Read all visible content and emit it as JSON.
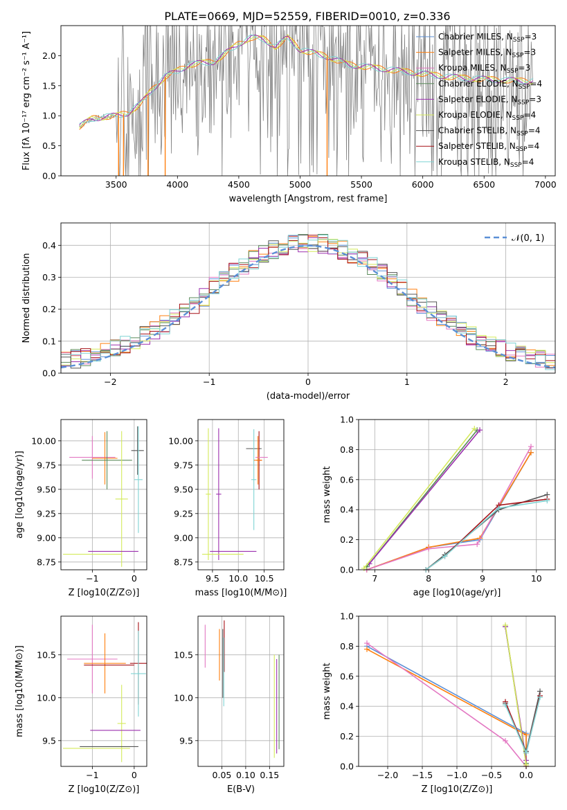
{
  "figure": {
    "title": "PLATE=0669, MJD=52559, FIBERID=0010, z=0.336",
    "series_colors": [
      "#5b8fd6",
      "#ff7f0e",
      "#e377c2",
      "#5a8a5a",
      "#9b2fae",
      "#d4ea5a",
      "#555555",
      "#a50f15",
      "#7fd3d3"
    ]
  },
  "chart_data": [
    {
      "id": "spectrum",
      "type": "line",
      "title": "PLATE=0669, MJD=52559, FIBERID=0010, z=0.336",
      "xlabel": "wavelength [Angstrom, rest frame]",
      "ylabel": "Flux [fλ 10⁻¹⁷ erg cm⁻² s⁻¹ A⁻¹]",
      "xlim": [
        3050,
        7080
      ],
      "ylim": [
        0,
        2.5
      ],
      "xticks": [
        3500,
        4000,
        4500,
        5000,
        5500,
        6000,
        6500,
        7000
      ],
      "yticks": [
        0.0,
        0.5,
        1.0,
        1.5,
        2.0
      ],
      "legend_position": "top-right",
      "legend": [
        "Chabrier MILES, N_SSP=3",
        "Salpeter MILES, N_SSP=3",
        "Kroupa MILES, N_SSP=3",
        "Chabrier ELODIE, N_SSP=4",
        "Salpeter ELODIE, N_SSP=3",
        "Kroupa ELODIE, N_SSP=4",
        "Chabrier STELIB, N_SSP=4",
        "Salpeter STELIB, N_SSP=4",
        "Kroupa STELIB, N_SSP=4"
      ],
      "continuum": {
        "x": [
          3200,
          3300,
          3400,
          3500,
          3600,
          3700,
          3800,
          3900,
          4000,
          4100,
          4200,
          4300,
          4400,
          4500,
          4600,
          4700,
          4800,
          4900,
          5000,
          5200,
          5400,
          5600,
          5800,
          6000,
          6200,
          6400,
          6600,
          6800,
          6900
        ],
        "y": [
          0.82,
          0.95,
          0.98,
          1.0,
          1.05,
          1.2,
          1.45,
          1.65,
          1.75,
          1.85,
          1.88,
          1.9,
          2.05,
          2.2,
          2.3,
          2.28,
          2.15,
          2.3,
          2.1,
          2.0,
          1.85,
          1.8,
          1.75,
          1.7,
          1.65,
          1.62,
          1.6,
          1.58,
          1.58
        ]
      }
    },
    {
      "id": "residuals",
      "type": "histogram",
      "xlabel": "(data-model)/error",
      "ylabel": "Normed distribution",
      "xlim": [
        -2.5,
        2.5
      ],
      "ylim": [
        0,
        0.47
      ],
      "xticks": [
        -2,
        -1,
        0,
        1,
        2
      ],
      "yticks": [
        0.0,
        0.1,
        0.2,
        0.3,
        0.4
      ],
      "legend": [
        "𝒩(0, 1)"
      ],
      "legend_position": "top-right",
      "bin_width": 0.1,
      "reference_curve": "normal(0,1)"
    },
    {
      "id": "age-vs-Z",
      "type": "errorbar",
      "xlabel": "Z [log10(Z/Z⊙)]",
      "ylabel": "age  [log10(age/yr)]",
      "xlim": [
        -1.75,
        0.3
      ],
      "ylim": [
        8.67,
        10.22
      ],
      "xticks": [
        -1,
        0
      ],
      "yticks": [
        8.75,
        9.0,
        9.25,
        9.5,
        9.75,
        10.0
      ],
      "points": [
        {
          "series": 6,
          "x": 0.08,
          "y": 9.9,
          "xerr": 0.15,
          "yerr": 0.25
        },
        {
          "series": 8,
          "x": 0.1,
          "y": 9.6,
          "xerr": 0.1,
          "yerr": 0.55
        },
        {
          "series": 2,
          "x": -1.0,
          "y": 9.83,
          "xerr": 0.55,
          "yerr": 0.22
        },
        {
          "series": 1,
          "x": -0.7,
          "y": 9.82,
          "xerr": 0.3,
          "yerr": 0.27
        },
        {
          "series": 3,
          "x": -0.65,
          "y": 9.8,
          "xerr": 0.6,
          "yerr": 0.3
        },
        {
          "series": 5,
          "x": -0.3,
          "y": 9.4,
          "xerr": 0.15,
          "yerr": 0.7
        },
        {
          "series": 4,
          "x": -0.5,
          "y": 8.86,
          "xerr": 0.6,
          "yerr": 0.0
        },
        {
          "series": 5,
          "x": -1.0,
          "y": 8.83,
          "xerr": 0.7,
          "yerr": 0.0
        }
      ]
    },
    {
      "id": "age-vs-mass",
      "type": "errorbar",
      "xlabel": "mass [log10(M/M⊙)]",
      "ylabel": "",
      "xlim": [
        9.22,
        10.88
      ],
      "ylim": [
        8.67,
        10.22
      ],
      "xticks": [
        9.5,
        10.0,
        10.5
      ],
      "yticks": [
        8.75,
        9.0,
        9.25,
        9.5,
        9.75,
        10.0
      ],
      "points": [
        {
          "series": 6,
          "x": 10.3,
          "y": 9.92,
          "xerr": 0.15,
          "yerr": 0.0
        },
        {
          "series": 8,
          "x": 10.3,
          "y": 9.6,
          "xerr": 0.05,
          "yerr": 0.52
        },
        {
          "series": 7,
          "x": 10.4,
          "y": 9.8,
          "xerr": 0.05,
          "yerr": 0.3
        },
        {
          "series": 2,
          "x": 10.45,
          "y": 9.83,
          "xerr": 0.12,
          "yerr": 0.0
        },
        {
          "series": 1,
          "x": 10.38,
          "y": 9.8,
          "xerr": 0.08,
          "yerr": 0.25
        },
        {
          "series": 5,
          "x": 9.42,
          "y": 9.45,
          "xerr": 0.05,
          "yerr": 0.68
        },
        {
          "series": 4,
          "x": 9.62,
          "y": 9.45,
          "xerr": 0.05,
          "yerr": 0.68
        },
        {
          "series": 4,
          "x": 9.9,
          "y": 8.86,
          "xerr": 0.45,
          "yerr": 0.0
        },
        {
          "series": 5,
          "x": 9.7,
          "y": 8.83,
          "xerr": 0.4,
          "yerr": 0.0
        }
      ]
    },
    {
      "id": "massweight-vs-age",
      "type": "line",
      "xlabel": "age  [log10(age/yr)]",
      "ylabel": "mass weight",
      "xlim": [
        6.7,
        10.35
      ],
      "ylim": [
        0,
        1.0
      ],
      "xticks": [
        7,
        8,
        9,
        10
      ],
      "yticks": [
        0.0,
        0.2,
        0.4,
        0.6,
        0.8,
        1.0
      ],
      "series": [
        {
          "series": 0,
          "x": [
            6.85,
            8.0,
            8.95,
            9.9
          ],
          "y": [
            0.0,
            0.15,
            0.2,
            0.78
          ]
        },
        {
          "series": 1,
          "x": [
            6.85,
            8.0,
            8.95,
            9.9
          ],
          "y": [
            0.0,
            0.15,
            0.21,
            0.78
          ]
        },
        {
          "series": 2,
          "x": [
            6.85,
            8.0,
            8.9,
            9.9
          ],
          "y": [
            0.0,
            0.14,
            0.17,
            0.82
          ]
        },
        {
          "series": 3,
          "x": [
            6.85,
            8.9
          ],
          "y": [
            0.02,
            0.93
          ]
        },
        {
          "series": 4,
          "x": [
            6.9,
            8.95
          ],
          "y": [
            0.04,
            0.93
          ]
        },
        {
          "series": 5,
          "x": [
            6.8,
            8.85
          ],
          "y": [
            0.01,
            0.94
          ]
        },
        {
          "series": 6,
          "x": [
            7.95,
            8.3,
            9.3,
            10.2
          ],
          "y": [
            0.0,
            0.1,
            0.4,
            0.5
          ]
        },
        {
          "series": 7,
          "x": [
            7.95,
            8.3,
            9.3,
            10.2
          ],
          "y": [
            0.0,
            0.09,
            0.43,
            0.47
          ]
        },
        {
          "series": 8,
          "x": [
            7.95,
            8.3,
            9.3,
            10.2
          ],
          "y": [
            0.0,
            0.09,
            0.41,
            0.46
          ]
        }
      ]
    },
    {
      "id": "mass-vs-Z",
      "type": "errorbar",
      "xlabel": "Z [log10(Z/Z⊙)]",
      "ylabel": "mass [log10(M/M⊙)]",
      "xlim": [
        -1.75,
        0.3
      ],
      "ylim": [
        9.2,
        10.95
      ],
      "xticks": [
        -1,
        0
      ],
      "yticks": [
        9.5,
        10.0,
        10.5
      ],
      "points": [
        {
          "series": 2,
          "x": -1.0,
          "y": 10.45,
          "xerr": 0.6,
          "yerr": 0.4
        },
        {
          "series": 1,
          "x": -0.7,
          "y": 10.4,
          "xerr": 0.5,
          "yerr": 0.35
        },
        {
          "series": 7,
          "x": -0.6,
          "y": 10.38,
          "xerr": 0.6,
          "yerr": 0.0
        },
        {
          "series": 7,
          "x": 0.1,
          "y": 10.4,
          "xerr": 0.2,
          "yerr": 0.48
        },
        {
          "series": 8,
          "x": 0.1,
          "y": 10.28,
          "xerr": 0.18,
          "yerr": 0.5
        },
        {
          "series": 5,
          "x": -0.3,
          "y": 9.7,
          "xerr": 0.1,
          "yerr": 0.45
        },
        {
          "series": 4,
          "x": -0.45,
          "y": 9.62,
          "xerr": 0.6,
          "yerr": 0.0
        },
        {
          "series": 6,
          "x": -0.6,
          "y": 9.43,
          "xerr": 0.7,
          "yerr": 0.0
        },
        {
          "series": 5,
          "x": -0.9,
          "y": 9.41,
          "xerr": 0.8,
          "yerr": 0.0
        }
      ]
    },
    {
      "id": "mass-vs-ebv",
      "type": "errorbar",
      "xlabel": "E(B-V)",
      "ylabel": "",
      "xlim": [
        0.0,
        0.18
      ],
      "ylim": [
        9.2,
        10.95
      ],
      "xticks": [
        0.05,
        0.1,
        0.15
      ],
      "yticks": [
        9.5,
        10.0,
        10.5
      ],
      "points": [
        {
          "series": 2,
          "x": 0.015,
          "y": 10.6,
          "xerr": 0.0,
          "yerr": 0.25
        },
        {
          "series": 1,
          "x": 0.045,
          "y": 10.5,
          "xerr": 0.0,
          "yerr": 0.3
        },
        {
          "series": 6,
          "x": 0.052,
          "y": 10.4,
          "xerr": 0.0,
          "yerr": 0.4
        },
        {
          "series": 7,
          "x": 0.055,
          "y": 10.6,
          "xerr": 0.0,
          "yerr": 0.3
        },
        {
          "series": 8,
          "x": 0.054,
          "y": 10.3,
          "xerr": 0.0,
          "yerr": 0.4
        },
        {
          "series": 5,
          "x": 0.16,
          "y": 9.9,
          "xerr": 0.0,
          "yerr": 0.6
        },
        {
          "series": 4,
          "x": 0.165,
          "y": 9.9,
          "xerr": 0.0,
          "yerr": 0.55
        },
        {
          "series": 3,
          "x": 0.17,
          "y": 9.95,
          "xerr": 0.0,
          "yerr": 0.55
        }
      ]
    },
    {
      "id": "massweight-vs-Z",
      "type": "line",
      "xlabel": "Z [log10(Z/Z⊙)]",
      "ylabel": "mass weight",
      "xlim": [
        -2.42,
        0.42
      ],
      "ylim": [
        0,
        1.0
      ],
      "xticks": [
        -2.0,
        -1.5,
        -1.0,
        -0.5,
        0.0
      ],
      "yticks": [
        0.0,
        0.2,
        0.4,
        0.6,
        0.8,
        1.0
      ],
      "series": [
        {
          "series": 0,
          "x": [
            -2.3,
            0.0,
            0.0
          ],
          "y": [
            0.8,
            0.22,
            0.0
          ]
        },
        {
          "series": 1,
          "x": [
            -2.3,
            0.0,
            0.0
          ],
          "y": [
            0.78,
            0.21,
            0.0
          ]
        },
        {
          "series": 2,
          "x": [
            -2.3,
            -0.3,
            0.0
          ],
          "y": [
            0.82,
            0.17,
            0.0
          ]
        },
        {
          "series": 3,
          "x": [
            -0.3,
            0.0
          ],
          "y": [
            0.93,
            0.02
          ]
        },
        {
          "series": 4,
          "x": [
            -0.3,
            0.0
          ],
          "y": [
            0.93,
            0.04
          ]
        },
        {
          "series": 5,
          "x": [
            -0.3,
            0.0
          ],
          "y": [
            0.94,
            0.01
          ]
        },
        {
          "series": 6,
          "x": [
            -0.3,
            0.0,
            0.2
          ],
          "y": [
            0.42,
            0.1,
            0.5
          ]
        },
        {
          "series": 7,
          "x": [
            -0.3,
            0.0,
            0.2
          ],
          "y": [
            0.43,
            0.09,
            0.47
          ]
        },
        {
          "series": 8,
          "x": [
            -0.3,
            0.0,
            0.2
          ],
          "y": [
            0.41,
            0.09,
            0.46
          ]
        }
      ]
    }
  ]
}
